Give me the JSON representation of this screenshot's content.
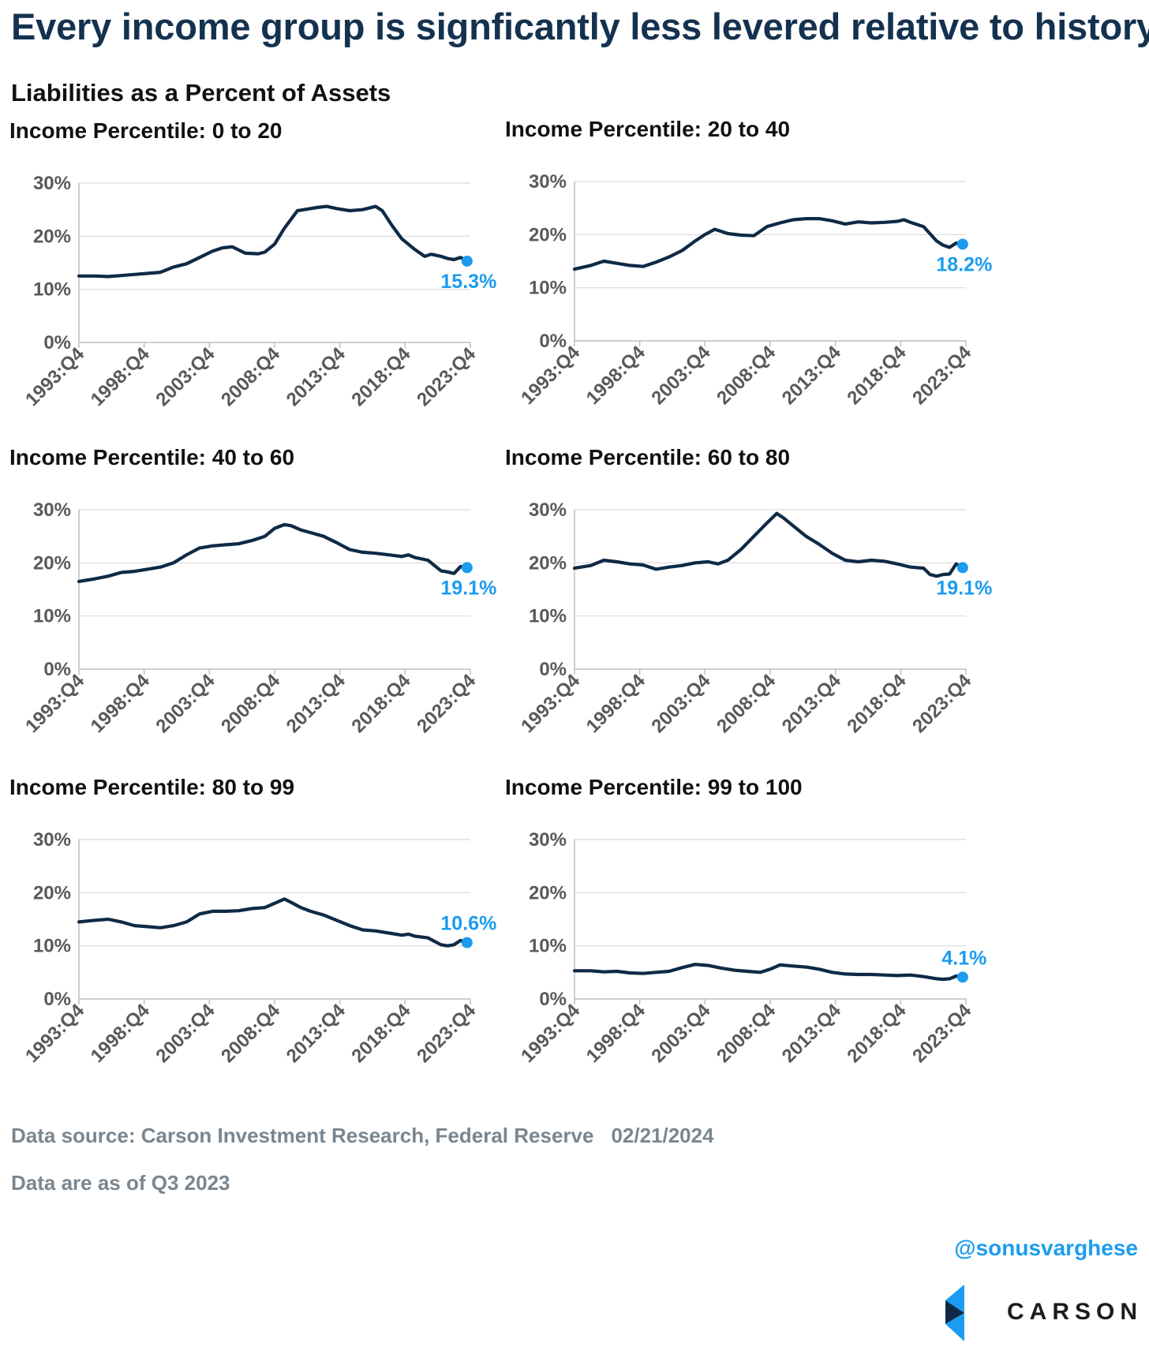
{
  "title": "Every income group is signficantly less levered relative to history",
  "subtitle": "Liabilities as a Percent of Assets",
  "footer": {
    "source": "Data source: Carson Investment Research, Federal Reserve",
    "date": "02/21/2024",
    "note": "Data are as of Q3 2023",
    "handle": "@sonusvarghese",
    "logo_text": "CARSON"
  },
  "colors": {
    "line": "#0e2a45",
    "accent": "#1b9cf0",
    "gridline": "#d9d9d9",
    "axis": "#bfbfbf"
  },
  "chart_data": [
    {
      "type": "line",
      "title": "Income Percentile: 0 to 20",
      "x_ticks": [
        "1993:Q4",
        "1998:Q4",
        "2003:Q4",
        "2008:Q4",
        "2013:Q4",
        "2018:Q4",
        "2023:Q4"
      ],
      "y_ticks": [
        "0%",
        "10%",
        "20%",
        "30%"
      ],
      "ylim": [
        0,
        30
      ],
      "xlim": [
        1993.75,
        2023.75
      ],
      "grid": true,
      "x": [
        1993.75,
        1995,
        1996,
        1997,
        1998,
        1999,
        2000,
        2001,
        2002,
        2003,
        2004,
        2004.75,
        2005.5,
        2006.5,
        2007.5,
        2008,
        2008.75,
        2009.5,
        2010.5,
        2011,
        2012,
        2012.75,
        2013.5,
        2014.5,
        2015.5,
        2016.5,
        2017,
        2017.75,
        2018.5,
        2019.5,
        2020.25,
        2020.75,
        2021.5,
        2022,
        2022.5,
        2023,
        2023.5
      ],
      "y": [
        12.5,
        12.5,
        12.4,
        12.6,
        12.8,
        13.0,
        13.2,
        14.2,
        14.8,
        16.0,
        17.2,
        17.8,
        18.0,
        16.8,
        16.7,
        17.0,
        18.5,
        21.5,
        24.8,
        25.0,
        25.4,
        25.6,
        25.2,
        24.8,
        25.0,
        25.6,
        24.8,
        22.0,
        19.5,
        17.5,
        16.2,
        16.6,
        16.2,
        15.8,
        15.6,
        16.0,
        15.3
      ],
      "end_label": "15.3%"
    },
    {
      "type": "line",
      "title": "Income Percentile: 20 to 40",
      "x_ticks": [
        "1993:Q4",
        "1998:Q4",
        "2003:Q4",
        "2008:Q4",
        "2013:Q4",
        "2018:Q4",
        "2023:Q4"
      ],
      "y_ticks": [
        "0%",
        "10%",
        "20%",
        "30%"
      ],
      "ylim": [
        0,
        30
      ],
      "xlim": [
        1993.75,
        2023.75
      ],
      "grid": true,
      "x": [
        1993.75,
        1995,
        1996,
        1997,
        1998,
        1999,
        2000,
        2001,
        2002,
        2003,
        2003.75,
        2004.5,
        2005.5,
        2006.5,
        2007.5,
        2008.5,
        2009.5,
        2010.5,
        2011.5,
        2012.5,
        2013.5,
        2014.5,
        2015.5,
        2016.5,
        2017.5,
        2018.5,
        2019,
        2019.5,
        2020.5,
        2021.5,
        2022,
        2022.5,
        2023,
        2023.5
      ],
      "y": [
        13.5,
        14.2,
        15.0,
        14.6,
        14.2,
        14.0,
        14.8,
        15.8,
        17.0,
        18.8,
        20.0,
        21.0,
        20.2,
        19.9,
        19.8,
        21.5,
        22.2,
        22.8,
        23.0,
        23.0,
        22.6,
        22.0,
        22.4,
        22.2,
        22.3,
        22.5,
        22.8,
        22.3,
        21.5,
        18.8,
        18.0,
        17.6,
        18.4,
        18.2
      ],
      "end_label": "18.2%"
    },
    {
      "type": "line",
      "title": "Income Percentile: 40 to 60",
      "x_ticks": [
        "1993:Q4",
        "1998:Q4",
        "2003:Q4",
        "2008:Q4",
        "2013:Q4",
        "2018:Q4",
        "2023:Q4"
      ],
      "y_ticks": [
        "0%",
        "10%",
        "20%",
        "30%"
      ],
      "ylim": [
        0,
        30
      ],
      "xlim": [
        1993.75,
        2023.75
      ],
      "grid": true,
      "x": [
        1993.75,
        1995,
        1996,
        1997,
        1998,
        1999,
        2000,
        2001,
        2002,
        2003,
        2004,
        2005,
        2006,
        2007,
        2008,
        2008.75,
        2009.5,
        2010,
        2010.75,
        2011.5,
        2012.5,
        2013.5,
        2014.5,
        2015.5,
        2016.5,
        2017.5,
        2018.5,
        2019,
        2019.5,
        2020.5,
        2021.5,
        2022,
        2022.5,
        2023,
        2023.5
      ],
      "y": [
        16.5,
        17.0,
        17.5,
        18.2,
        18.4,
        18.8,
        19.2,
        20.0,
        21.5,
        22.8,
        23.2,
        23.4,
        23.6,
        24.2,
        25.0,
        26.5,
        27.2,
        27.0,
        26.2,
        25.7,
        25.0,
        23.8,
        22.5,
        22.0,
        21.8,
        21.5,
        21.2,
        21.5,
        21.0,
        20.5,
        18.5,
        18.3,
        18.0,
        19.3,
        19.1
      ],
      "end_label": "19.1%"
    },
    {
      "type": "line",
      "title": "Income Percentile: 60 to 80",
      "x_ticks": [
        "1993:Q4",
        "1998:Q4",
        "2003:Q4",
        "2008:Q4",
        "2013:Q4",
        "2018:Q4",
        "2023:Q4"
      ],
      "y_ticks": [
        "0%",
        "10%",
        "20%",
        "30%"
      ],
      "ylim": [
        0,
        30
      ],
      "xlim": [
        1993.75,
        2023.75
      ],
      "grid": true,
      "x": [
        1993.75,
        1995,
        1996,
        1997,
        1998,
        1999,
        2000,
        2001,
        2002,
        2003,
        2004,
        2004.75,
        2005.5,
        2006.5,
        2007.5,
        2008.5,
        2009.25,
        2009.75,
        2010.5,
        2011.5,
        2012.5,
        2013.5,
        2014.5,
        2015.5,
        2016.5,
        2017.5,
        2018.5,
        2019.5,
        2020.5,
        2021,
        2021.5,
        2022,
        2022.5,
        2023,
        2023.5
      ],
      "y": [
        19.0,
        19.5,
        20.5,
        20.2,
        19.8,
        19.6,
        18.8,
        19.2,
        19.5,
        20.0,
        20.2,
        19.8,
        20.5,
        22.5,
        25.0,
        27.5,
        29.3,
        28.5,
        27.0,
        25.0,
        23.5,
        21.8,
        20.5,
        20.2,
        20.5,
        20.3,
        19.8,
        19.2,
        19.0,
        17.8,
        17.5,
        17.8,
        17.9,
        19.8,
        19.1
      ],
      "end_label": "19.1%"
    },
    {
      "type": "line",
      "title": "Income Percentile: 80 to 99",
      "x_ticks": [
        "1993:Q4",
        "1998:Q4",
        "2003:Q4",
        "2008:Q4",
        "2013:Q4",
        "2018:Q4",
        "2023:Q4"
      ],
      "y_ticks": [
        "0%",
        "10%",
        "20%",
        "30%"
      ],
      "ylim": [
        0,
        30
      ],
      "xlim": [
        1993.75,
        2023.75
      ],
      "grid": true,
      "x": [
        1993.75,
        1995,
        1996,
        1997,
        1998,
        1999,
        2000,
        2001,
        2002,
        2003,
        2004,
        2005,
        2006,
        2007,
        2008,
        2008.75,
        2009.5,
        2010,
        2010.75,
        2011.5,
        2012.5,
        2013.5,
        2014.5,
        2015.5,
        2016.5,
        2017.5,
        2018.5,
        2019,
        2019.5,
        2020.5,
        2021.5,
        2022,
        2022.5,
        2023,
        2023.5
      ],
      "y": [
        14.5,
        14.8,
        15.0,
        14.5,
        13.8,
        13.6,
        13.4,
        13.8,
        14.5,
        16.0,
        16.5,
        16.5,
        16.6,
        17.0,
        17.2,
        18.0,
        18.8,
        18.2,
        17.2,
        16.5,
        15.8,
        14.8,
        13.8,
        13.0,
        12.8,
        12.4,
        12.0,
        12.2,
        11.8,
        11.5,
        10.2,
        10.0,
        10.2,
        11.0,
        10.6
      ],
      "end_label": "10.6%"
    },
    {
      "type": "line",
      "title": "Income Percentile: 99 to 100",
      "x_ticks": [
        "1993:Q4",
        "1998:Q4",
        "2003:Q4",
        "2008:Q4",
        "2013:Q4",
        "2018:Q4",
        "2023:Q4"
      ],
      "y_ticks": [
        "0%",
        "10%",
        "20%",
        "30%"
      ],
      "ylim": [
        0,
        30
      ],
      "xlim": [
        1993.75,
        2023.75
      ],
      "grid": true,
      "x": [
        1993.75,
        1995,
        1996,
        1997,
        1998,
        1999,
        2000,
        2001,
        2002,
        2003,
        2004,
        2005,
        2006,
        2007,
        2008,
        2008.75,
        2009.5,
        2010.5,
        2011.5,
        2012.5,
        2013.5,
        2014.5,
        2015.5,
        2016.5,
        2017.5,
        2018.5,
        2019.5,
        2020.5,
        2021.5,
        2022,
        2022.5,
        2023,
        2023.5
      ],
      "y": [
        5.3,
        5.3,
        5.1,
        5.2,
        4.9,
        4.8,
        5.0,
        5.2,
        5.9,
        6.5,
        6.3,
        5.8,
        5.4,
        5.2,
        5.0,
        5.6,
        6.4,
        6.2,
        6.0,
        5.6,
        5.0,
        4.7,
        4.6,
        4.6,
        4.5,
        4.4,
        4.5,
        4.2,
        3.8,
        3.7,
        3.8,
        4.3,
        4.1
      ],
      "end_label": "4.1%"
    }
  ]
}
